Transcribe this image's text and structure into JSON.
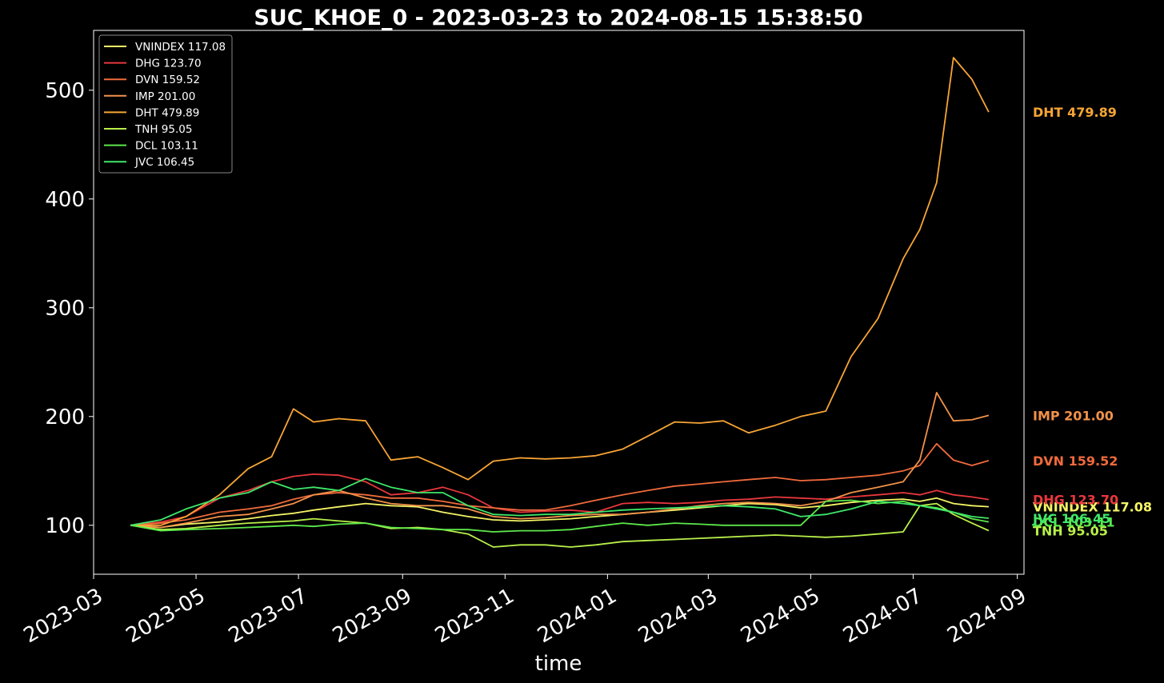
{
  "chart_data": {
    "type": "line",
    "title": "SUC_KHOE_0 - 2023-03-23 to 2024-08-15 15:38:50",
    "xlabel": "time",
    "ylabel": "",
    "xlim": [
      "2023-03-01",
      "2024-09-05"
    ],
    "ylim": [
      55,
      555
    ],
    "x_ticks": [
      "2023-03",
      "2023-05",
      "2023-07",
      "2023-09",
      "2023-11",
      "2024-01",
      "2024-03",
      "2024-05",
      "2024-07",
      "2024-09"
    ],
    "y_ticks": [
      100,
      200,
      300,
      400,
      500
    ],
    "grid": false,
    "legend_position": "top-left",
    "x_dates": [
      "2023-03-23",
      "2023-04-10",
      "2023-04-25",
      "2023-05-15",
      "2023-06-01",
      "2023-06-15",
      "2023-06-28",
      "2023-07-10",
      "2023-07-25",
      "2023-08-10",
      "2023-08-25",
      "2023-09-10",
      "2023-09-25",
      "2023-10-10",
      "2023-10-25",
      "2023-11-10",
      "2023-11-25",
      "2023-12-10",
      "2023-12-25",
      "2024-01-10",
      "2024-01-25",
      "2024-02-10",
      "2024-02-25",
      "2024-03-10",
      "2024-03-25",
      "2024-04-10",
      "2024-04-25",
      "2024-05-10",
      "2024-05-25",
      "2024-06-10",
      "2024-06-25",
      "2024-07-05",
      "2024-07-15",
      "2024-07-25",
      "2024-08-05",
      "2024-08-15"
    ],
    "series": [
      {
        "name": "VNINDEX 117.08",
        "color": "#f4f466",
        "end_label": "VNINDEX 117.08",
        "values": [
          100,
          98,
          101,
          103,
          106,
          109,
          111,
          114,
          117,
          120,
          118,
          117,
          112,
          108,
          105,
          104,
          105,
          106,
          108,
          110,
          112,
          114,
          116,
          118,
          120,
          119,
          116,
          118,
          121,
          123,
          124,
          122,
          125,
          120,
          118,
          117.08
        ]
      },
      {
        "name": "DHG 123.70",
        "color": "#e8373c",
        "end_label": "DHG 123.70",
        "values": [
          100,
          103,
          108,
          125,
          132,
          140,
          145,
          147,
          146,
          140,
          128,
          130,
          135,
          128,
          116,
          112,
          113,
          114,
          112,
          120,
          121,
          120,
          121,
          123,
          124,
          126,
          125,
          124,
          126,
          128,
          130,
          128,
          132,
          128,
          126,
          123.7
        ]
      },
      {
        "name": "DVN 159.52",
        "color": "#f06a3c",
        "end_label": "DVN 159.52",
        "values": [
          100,
          102,
          105,
          112,
          115,
          118,
          124,
          128,
          130,
          128,
          125,
          125,
          122,
          118,
          116,
          114,
          114,
          118,
          123,
          128,
          132,
          136,
          138,
          140,
          142,
          144,
          141,
          142,
          144,
          146,
          150,
          155,
          175,
          160,
          155,
          159.52
        ]
      },
      {
        "name": "IMP 201.00",
        "color": "#f2924a",
        "end_label": "IMP 201.00",
        "values": [
          100,
          98,
          102,
          108,
          110,
          115,
          120,
          128,
          132,
          125,
          120,
          118,
          118,
          115,
          108,
          106,
          107,
          109,
          110,
          110,
          112,
          115,
          118,
          120,
          121,
          120,
          118,
          122,
          130,
          135,
          140,
          160,
          222,
          196,
          197,
          201
        ]
      },
      {
        "name": "DHT 479.89",
        "color": "#f7a535",
        "end_label": "DHT 479.89",
        "values": [
          100,
          100,
          108,
          128,
          152,
          163,
          207,
          195,
          198,
          196,
          160,
          163,
          153,
          142,
          159,
          162,
          161,
          162,
          164,
          170,
          182,
          195,
          194,
          196,
          185,
          192,
          200,
          205,
          255,
          290,
          345,
          372,
          415,
          530,
          510,
          479.89
        ]
      },
      {
        "name": "TNH 95.05",
        "color": "#b8f04a",
        "end_label": "TNH 95.05",
        "values": [
          100,
          96,
          97,
          100,
          102,
          103,
          104,
          106,
          104,
          102,
          97,
          98,
          96,
          92,
          80,
          82,
          82,
          80,
          82,
          85,
          86,
          87,
          88,
          89,
          90,
          91,
          90,
          89,
          90,
          92,
          94,
          118,
          120,
          110,
          102,
          95.05
        ]
      },
      {
        "name": "DCL 103.11",
        "color": "#5de84a",
        "end_label": "DCL 103.11",
        "values": [
          100,
          95,
          96,
          97,
          98,
          99,
          100,
          99,
          101,
          102,
          98,
          97,
          96,
          96,
          94,
          95,
          95,
          96,
          99,
          102,
          100,
          102,
          101,
          100,
          100,
          100,
          100,
          122,
          123,
          120,
          122,
          118,
          116,
          112,
          106,
          103.11
        ]
      },
      {
        "name": "JVC 106.45",
        "color": "#3ee86a",
        "end_label": "JVC 106.45",
        "values": [
          100,
          105,
          115,
          125,
          130,
          140,
          133,
          135,
          132,
          143,
          135,
          130,
          130,
          118,
          110,
          109,
          110,
          110,
          112,
          114,
          115,
          116,
          117,
          118,
          117,
          115,
          108,
          110,
          115,
          122,
          120,
          118,
          115,
          112,
          108,
          106.45
        ]
      }
    ]
  }
}
